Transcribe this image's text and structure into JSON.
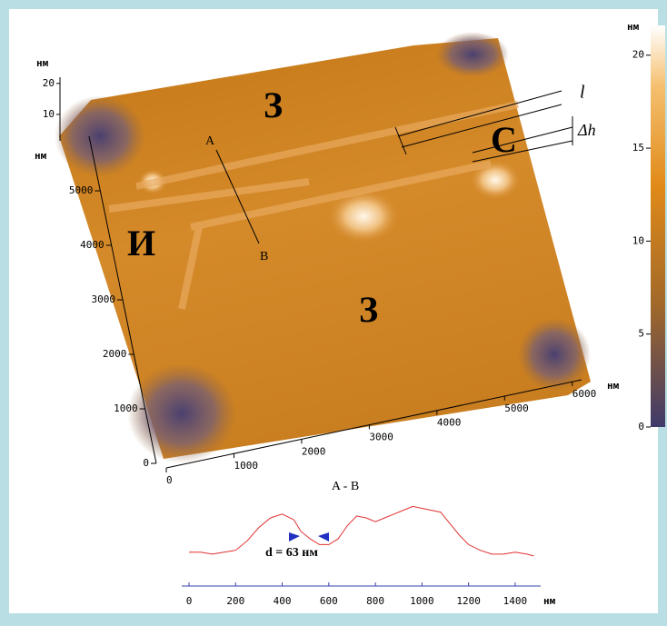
{
  "surface": {
    "z_unit": "нм",
    "zlim": [
      0,
      22
    ],
    "zticks": [
      10,
      20
    ],
    "y_unit": "нм",
    "ylim": [
      0,
      6000
    ],
    "yticks": [
      0,
      1000,
      2000,
      3000,
      4000,
      5000
    ],
    "x_unit": "нм",
    "xlim": [
      0,
      6500
    ],
    "xticks": [
      0,
      1000,
      2000,
      3000,
      4000,
      5000,
      6000
    ],
    "labels": {
      "z1": "З",
      "z2": "З",
      "i": "И",
      "s": "С",
      "a": "A",
      "b": "B",
      "l": "l",
      "dh": "Δh"
    }
  },
  "colorbar": {
    "unit": "нм",
    "lim": [
      0,
      21.6
    ],
    "ticks": [
      0,
      5,
      10,
      15,
      20
    ]
  },
  "profile": {
    "title": "A - B",
    "annotation": "d = 63 нм",
    "unit": "нм",
    "xlim": [
      0,
      1490
    ],
    "xticks": [
      0,
      200,
      400,
      600,
      800,
      1000,
      1200,
      1400
    ],
    "color": "#e03030",
    "x": [
      0,
      50,
      100,
      150,
      200,
      250,
      300,
      350,
      400,
      450,
      480,
      520,
      560,
      600,
      640,
      680,
      720,
      760,
      800,
      840,
      880,
      920,
      960,
      1000,
      1040,
      1080,
      1120,
      1160,
      1200,
      1250,
      1300,
      1350,
      1400,
      1450,
      1480
    ],
    "y": [
      2,
      2,
      1,
      2,
      3,
      8,
      15,
      20,
      22,
      19,
      13,
      9,
      6,
      6,
      9,
      16,
      21,
      20,
      18,
      20,
      22,
      24,
      26,
      25,
      24,
      23,
      17,
      11,
      6,
      3,
      1,
      1,
      2,
      1,
      0
    ]
  }
}
